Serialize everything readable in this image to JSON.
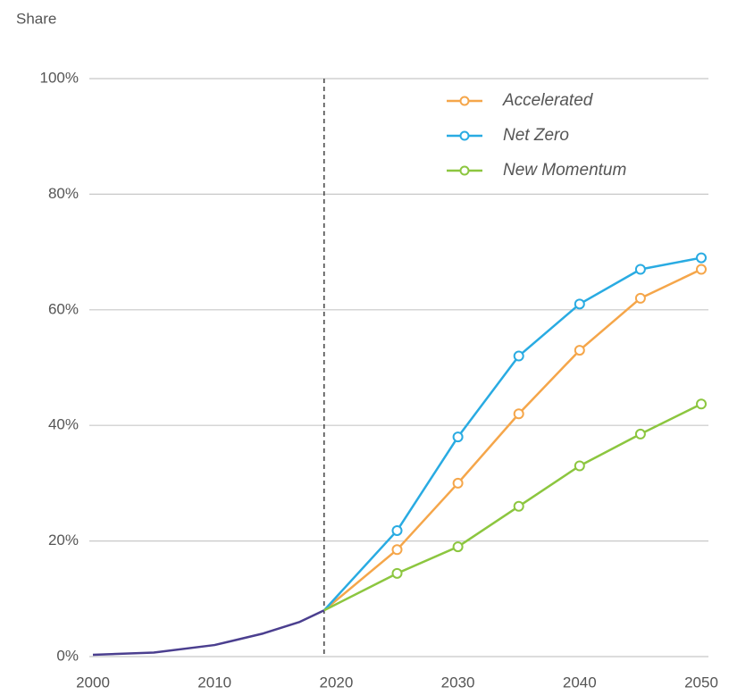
{
  "chart_data": {
    "type": "line",
    "y_label": "Share",
    "x": [
      2000,
      2005,
      2010,
      2014,
      2017,
      2019,
      2025,
      2030,
      2035,
      2040,
      2045,
      2050
    ],
    "series": [
      {
        "color": "#4b3f8f",
        "values": [
          0.3,
          0.7,
          2,
          4,
          6,
          8,
          null,
          null,
          null,
          null,
          null,
          null
        ]
      },
      {
        "name": "Accelerated",
        "color": "#f5a64a",
        "values": [
          null,
          null,
          null,
          null,
          null,
          8,
          18.5,
          30,
          42,
          53,
          62,
          67
        ]
      },
      {
        "name": "Net Zero",
        "color": "#29abe2",
        "values": [
          null,
          null,
          null,
          null,
          null,
          8,
          21.8,
          38,
          52,
          61,
          67,
          69
        ]
      },
      {
        "name": "New Momentum",
        "color": "#8cc63f",
        "values": [
          null,
          null,
          null,
          null,
          null,
          8,
          14.4,
          19,
          26,
          33,
          38.5,
          43.7
        ]
      }
    ],
    "vline": 2019,
    "xlim": [
      2000,
      2050
    ],
    "xticks": [
      2000,
      2010,
      2020,
      2030,
      2040,
      2050
    ],
    "ylim": [
      0,
      100
    ],
    "yticks": [
      {
        "value": 0,
        "label": "0%"
      },
      {
        "value": 20,
        "label": "20%"
      },
      {
        "value": 40,
        "label": "40%"
      },
      {
        "value": 60,
        "label": "60%"
      },
      {
        "value": 80,
        "label": "80%"
      },
      {
        "value": 100,
        "label": "100%"
      }
    ],
    "grid": true,
    "legend": "upper right"
  }
}
